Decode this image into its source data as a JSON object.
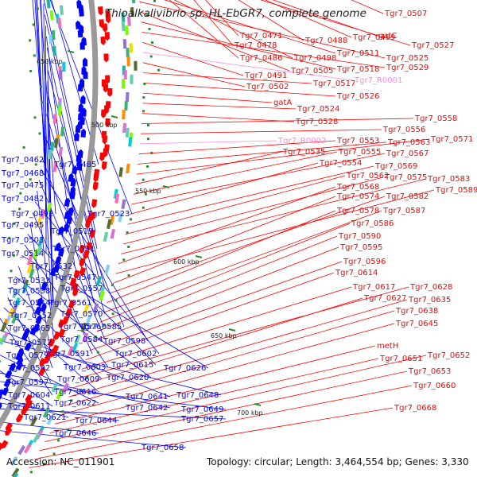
{
  "title": "Thioalkalivibrio sp. HL-EbGR7, complete genome",
  "footer": {
    "accession": "Accession: NC_011901",
    "topology": "Topology: circular; Length: 3,464,554 bp; Genes: 3,330"
  },
  "colors": {
    "forward_strand": "#ff0000",
    "reverse_strand": "#0000ff",
    "rna_label": "#ff88dd",
    "backbone": "#999999",
    "tick": "#2e8b2e"
  },
  "scale_ticks": [
    "450 kbp",
    "500 kbp",
    "550 kbp",
    "600 kbp",
    "650 kbp",
    "700 kbp"
  ],
  "right_labels": [
    {
      "text": "Tgr7_0507",
      "kind": "gene"
    },
    {
      "text": "Tgr7_0471",
      "kind": "gene"
    },
    {
      "text": "Tgr7_0478",
      "kind": "gene"
    },
    {
      "text": "Tgr7_0488",
      "kind": "gene"
    },
    {
      "text": "Tgr7_0499",
      "kind": "gene"
    },
    {
      "text": "gatC",
      "kind": "gene"
    },
    {
      "text": "Tgr7_0527",
      "kind": "gene"
    },
    {
      "text": "Tgr7_0486",
      "kind": "gene"
    },
    {
      "text": "Tgr7_0498",
      "kind": "gene"
    },
    {
      "text": "Tgr7_0511",
      "kind": "gene"
    },
    {
      "text": "Tgr7_0525",
      "kind": "gene"
    },
    {
      "text": "Tgr7_0505",
      "kind": "gene"
    },
    {
      "text": "Tgr7_0518",
      "kind": "gene"
    },
    {
      "text": "Tgr7_0529",
      "kind": "gene"
    },
    {
      "text": "Tgr7_0491",
      "kind": "gene"
    },
    {
      "text": "Tgr7_R0001",
      "kind": "rna"
    },
    {
      "text": "Tgr7_0502",
      "kind": "gene"
    },
    {
      "text": "Tgr7_0517",
      "kind": "gene"
    },
    {
      "text": "Tgr7_0526",
      "kind": "gene"
    },
    {
      "text": "gatA",
      "kind": "gene"
    },
    {
      "text": "Tgr7_0524",
      "kind": "gene"
    },
    {
      "text": "Tgr7_0528",
      "kind": "gene"
    },
    {
      "text": "Tgr7_0558",
      "kind": "gene"
    },
    {
      "text": "Tgr7_0556",
      "kind": "gene"
    },
    {
      "text": "Tgr7_R0002",
      "kind": "rna"
    },
    {
      "text": "Tgr7_0553",
      "kind": "gene"
    },
    {
      "text": "Tgr7_0563",
      "kind": "gene"
    },
    {
      "text": "Tgr7_0571",
      "kind": "gene"
    },
    {
      "text": "Tgr7_0535",
      "kind": "gene"
    },
    {
      "text": "Tgr7_0555",
      "kind": "gene"
    },
    {
      "text": "Tgr7_0567",
      "kind": "gene"
    },
    {
      "text": "Tgr7_0554",
      "kind": "gene"
    },
    {
      "text": "Tgr7_0569",
      "kind": "gene"
    },
    {
      "text": "Tgr7_0562",
      "kind": "gene"
    },
    {
      "text": "Tgr7_0575",
      "kind": "gene"
    },
    {
      "text": "Tgr7_0583",
      "kind": "gene"
    },
    {
      "text": "Tgr7_0568",
      "kind": "gene"
    },
    {
      "text": "Tgr7_0589",
      "kind": "gene"
    },
    {
      "text": "Tgr7_0574",
      "kind": "gene"
    },
    {
      "text": "Tgr7_0582",
      "kind": "gene"
    },
    {
      "text": "Tgr7_0578",
      "kind": "gene"
    },
    {
      "text": "Tgr7_0587",
      "kind": "gene"
    },
    {
      "text": "Tgr7_0586",
      "kind": "gene"
    },
    {
      "text": "Tgr7_0590",
      "kind": "gene"
    },
    {
      "text": "Tgr7_0595",
      "kind": "gene"
    },
    {
      "text": "Tgr7_0596",
      "kind": "gene"
    },
    {
      "text": "Tgr7_0614",
      "kind": "gene"
    },
    {
      "text": "Tgr7_0617",
      "kind": "gene"
    },
    {
      "text": "Tgr7_0628",
      "kind": "gene"
    },
    {
      "text": "Tgr7_0627",
      "kind": "gene"
    },
    {
      "text": "Tgr7_0635",
      "kind": "gene"
    },
    {
      "text": "Tgr7_0638",
      "kind": "gene"
    },
    {
      "text": "Tgr7_0645",
      "kind": "gene"
    },
    {
      "text": "metH",
      "kind": "gene"
    },
    {
      "text": "Tgr7_0651",
      "kind": "gene"
    },
    {
      "text": "Tgr7_0652",
      "kind": "gene"
    },
    {
      "text": "Tgr7_0653",
      "kind": "gene"
    },
    {
      "text": "Tgr7_0660",
      "kind": "gene"
    },
    {
      "text": "Tgr7_0668",
      "kind": "gene"
    }
  ],
  "left_labels": [
    "Tgr7_0462",
    "Tgr7_0485",
    "Tgr7_0468",
    "Tgr7_0475",
    "Tgr7_0482",
    "Tgr7_0492",
    "Tgr7_0523",
    "Tgr7_0495",
    "Tgr7_0519",
    "Tgr7_0503",
    "Tgr7_0531",
    "Tgr7_0514",
    "Tgr7_0532",
    "Tgr7_0547",
    "Tgr7_0533",
    "Tgr7_0557",
    "Tgr7_0538",
    "Tgr7_0561",
    "Tgr7_0544",
    "Tgr7_0570",
    "Tgr7_0552",
    "Tgr7_0585",
    "Tgr7_0565",
    "Tgr7_0576",
    "Tgr7_0598",
    "Tgr7_0584",
    "Tgr7_0572",
    "Tgr7_0602",
    "Tgr7_0591",
    "Tgr7_0579",
    "Tgr7_0615",
    "Tgr7_0603",
    "Tgr7_0626",
    "Tgr7_0592",
    "Tgr7_0620",
    "Tgr7_0609",
    "Tgr7_0597",
    "Tgr7_0616",
    "Tgr7_0604",
    "Tgr7_0641",
    "Tgr7_0648",
    "Tgr7_0622",
    "Tgr7_0611",
    "Tgr7_0642",
    "Tgr7_0649",
    "Tgr7_0621",
    "Tgr7_0644",
    "Tgr7_0657",
    "Tgr7_0646",
    "Tgr7_0658"
  ]
}
